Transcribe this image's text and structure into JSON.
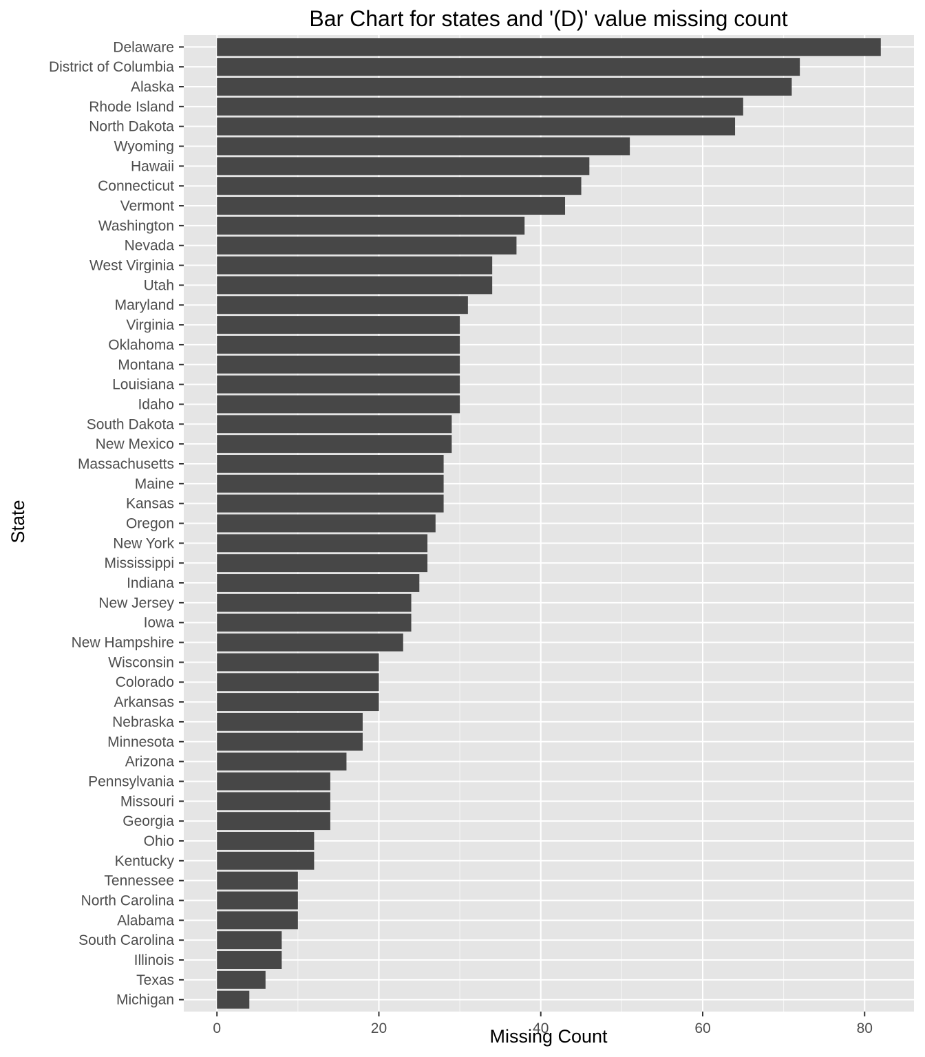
{
  "chart_data": {
    "type": "bar",
    "orientation": "horizontal",
    "title": "Bar Chart for states and '(D)' value missing count",
    "xlabel": "Missing Count",
    "ylabel": "State",
    "xlim": [
      -4.1,
      86.1
    ],
    "xticks": [
      0,
      20,
      40,
      60,
      80
    ],
    "grid": true,
    "bar_color": "#474747",
    "panel_color": "#e5e5e5",
    "categories": [
      "Delaware",
      "District of Columbia",
      "Alaska",
      "Rhode Island",
      "North Dakota",
      "Wyoming",
      "Hawaii",
      "Connecticut",
      "Vermont",
      "Washington",
      "Nevada",
      "West Virginia",
      "Utah",
      "Maryland",
      "Virginia",
      "Oklahoma",
      "Montana",
      "Louisiana",
      "Idaho",
      "South Dakota",
      "New Mexico",
      "Massachusetts",
      "Maine",
      "Kansas",
      "Oregon",
      "New York",
      "Mississippi",
      "Indiana",
      "New Jersey",
      "Iowa",
      "New Hampshire",
      "Wisconsin",
      "Colorado",
      "Arkansas",
      "Nebraska",
      "Minnesota",
      "Arizona",
      "Pennsylvania",
      "Missouri",
      "Georgia",
      "Ohio",
      "Kentucky",
      "Tennessee",
      "North Carolina",
      "Alabama",
      "South Carolina",
      "Illinois",
      "Texas",
      "Michigan"
    ],
    "values": [
      82,
      72,
      71,
      65,
      64,
      51,
      46,
      45,
      43,
      38,
      37,
      34,
      34,
      31,
      30,
      30,
      30,
      30,
      30,
      29,
      29,
      28,
      28,
      28,
      27,
      26,
      26,
      25,
      24,
      24,
      23,
      20,
      20,
      20,
      18,
      18,
      16,
      14,
      14,
      14,
      12,
      12,
      10,
      10,
      10,
      8,
      8,
      6,
      4
    ]
  }
}
